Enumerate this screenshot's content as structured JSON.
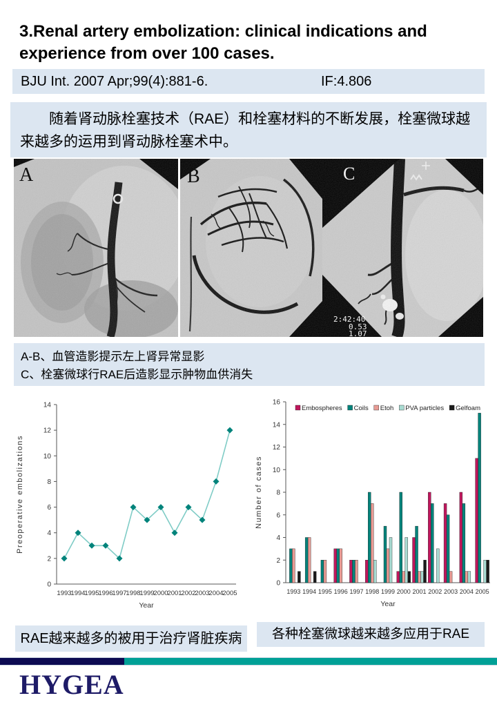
{
  "title": "3.Renal artery embolization: clinical indications and experience from over 100 cases.",
  "citation": {
    "reference": "BJU Int. 2007 Apr;99(4):881-6.",
    "impact_factor": "IF:4.806"
  },
  "intro_text": "随着肾动脉栓塞技术（RAE）和栓塞材料的不断发展，栓塞微球越来越多的运用到肾动脉栓塞术中。",
  "angiograms": {
    "panels": [
      {
        "label": "A"
      },
      {
        "label": "B"
      },
      {
        "label": "C",
        "overlay_lines": [
          "2:42:40",
          "0.53",
          "1.07"
        ]
      }
    ],
    "caption_line1": "A-B、血管造影提示左上肾异常显影",
    "caption_line2": "C、栓塞微球行RAE后造影显示肿物血供消失"
  },
  "chart_captions": {
    "left": "RAE越来越多的被用于治疗肾脏疾病",
    "right": "各种栓塞微球越来越多应用于RAE"
  },
  "logo": {
    "text": "HYGEA",
    "color": "#1e1b67"
  },
  "footer_colors": {
    "navy": "#0d0b52",
    "teal": "#00a096"
  },
  "accent_colors": {
    "light_blue_box": "#dce6f1"
  },
  "chart_data": [
    {
      "type": "line",
      "title": "",
      "xlabel": "Year",
      "ylabel": "Preoperative embolizations",
      "x": [
        "1993",
        "1994",
        "1995",
        "1996",
        "1997",
        "1998",
        "1999",
        "2000",
        "2001",
        "2002",
        "2003",
        "2004",
        "2005"
      ],
      "values": [
        2,
        4,
        3,
        3,
        2,
        6,
        5,
        6,
        4,
        6,
        5,
        8,
        12
      ],
      "ylim": [
        0,
        14
      ],
      "ytick_step": 2,
      "grid": false,
      "line_color": "#7fccc6",
      "marker_color": "#00837b",
      "marker": "diamond"
    },
    {
      "type": "bar",
      "title": "",
      "xlabel": "Year",
      "ylabel": "Number of cases",
      "categories": [
        "1993",
        "1994",
        "1995",
        "1996",
        "1997",
        "1998",
        "1999",
        "2000",
        "2001",
        "2002",
        "2003",
        "2004",
        "2005"
      ],
      "ylim": [
        0,
        16
      ],
      "ytick_step": 2,
      "grid": false,
      "legend_position": "top-inside",
      "series": [
        {
          "name": "Embospheres",
          "color": "#c0175d",
          "values": [
            0,
            0,
            0,
            3,
            2,
            2,
            0,
            1,
            4,
            8,
            7,
            8,
            11
          ]
        },
        {
          "name": "Coils",
          "color": "#00837b",
          "values": [
            3,
            4,
            2,
            3,
            2,
            8,
            5,
            8,
            5,
            7,
            6,
            7,
            15
          ]
        },
        {
          "name": "Etoh",
          "color": "#e89b94",
          "values": [
            3,
            4,
            2,
            3,
            2,
            7,
            3,
            1,
            1,
            0,
            1,
            1,
            0
          ]
        },
        {
          "name": "PVA particles",
          "color": "#a9dbd2",
          "values": [
            0,
            0,
            0,
            0,
            0,
            2,
            4,
            4,
            1,
            3,
            0,
            1,
            2
          ]
        },
        {
          "name": "Gelfoam",
          "color": "#1a1a1a",
          "values": [
            1,
            1,
            0,
            0,
            0,
            0,
            0,
            1,
            2,
            0,
            0,
            0,
            2
          ]
        }
      ]
    }
  ]
}
